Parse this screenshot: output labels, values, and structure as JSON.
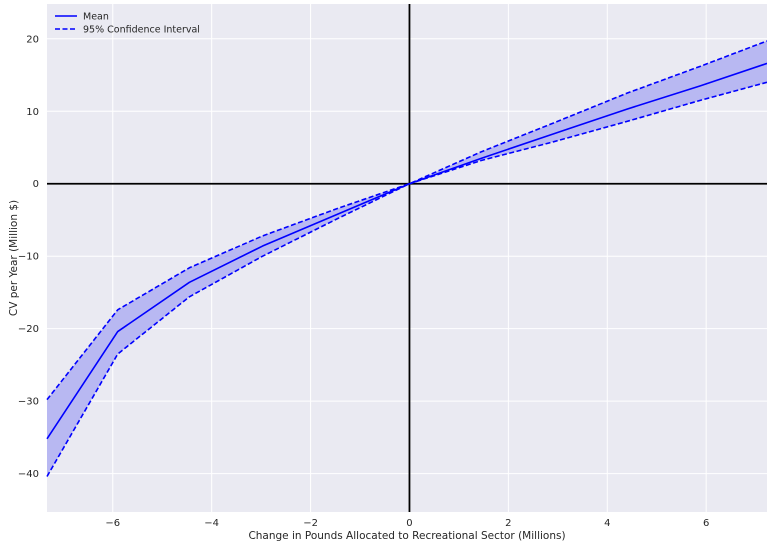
{
  "chart_data": {
    "type": "line",
    "title": "",
    "xlabel": "Change in Pounds Allocated to Recreational Sector (Millions)",
    "ylabel": "CV per Year (Million $)",
    "xlim": [
      -7.33,
      7.23
    ],
    "ylim": [
      -45.3,
      24.8
    ],
    "xticks": [
      -6,
      -4,
      -2,
      0,
      2,
      4,
      6
    ],
    "yticks": [
      -40,
      -30,
      -20,
      -10,
      0,
      10,
      20
    ],
    "grid": true,
    "legend_position": "top-left",
    "x": [
      -7.33,
      -5.9,
      -4.45,
      -2.97,
      -1.45,
      0,
      1.45,
      2.92,
      4.4,
      5.88,
      7.23
    ],
    "series": [
      {
        "name": "Mean",
        "style": "solid",
        "color": "#0000ff",
        "values": [
          -35.2,
          -20.4,
          -13.6,
          -8.6,
          -4.2,
          0,
          3.5,
          6.9,
          10.3,
          13.5,
          16.6
        ]
      },
      {
        "name": "95% Confidence Interval",
        "style": "dashed",
        "color": "#0000ff",
        "values": [
          -29.8,
          -17.4,
          -11.6,
          -7.2,
          -3.4,
          0,
          4.4,
          8.4,
          12.5,
          16.2,
          19.7
        ]
      },
      {
        "name": "95% Confidence Interval (lower)",
        "style": "dashed",
        "color": "#0000ff",
        "legend": false,
        "values": [
          -40.4,
          -23.5,
          -15.6,
          -10.0,
          -4.8,
          0,
          3.2,
          5.8,
          8.6,
          11.5,
          14.0
        ]
      }
    ],
    "band_color": "#b8b8f2",
    "background_color": "#eaeaf2",
    "grid_color": "#ffffff",
    "zero_line_color": "#000000"
  }
}
